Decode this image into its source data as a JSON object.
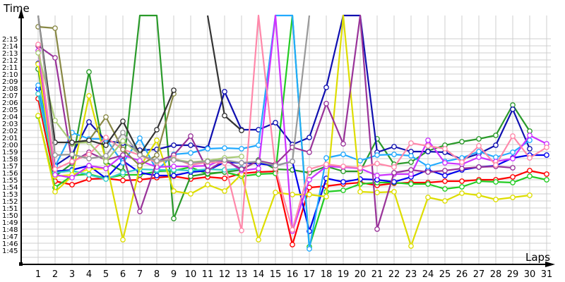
{
  "chart_data": {
    "type": "line",
    "title": "",
    "xlabel": "Laps",
    "ylabel": "Time",
    "x": [
      1,
      2,
      3,
      4,
      5,
      6,
      7,
      8,
      9,
      10,
      11,
      12,
      13,
      14,
      15,
      16,
      17,
      18,
      19,
      20,
      21,
      22,
      23,
      24,
      25,
      26,
      27,
      28,
      29,
      30,
      31
    ],
    "y_tick_labels": [
      "1:45",
      "1:46",
      "1:47",
      "1:48",
      "1:49",
      "1:50",
      "1:51",
      "1:52",
      "1:53",
      "1:54",
      "1:55",
      "1:56",
      "1:57",
      "1:58",
      "1:59",
      "2:00",
      "2:01",
      "2:02",
      "2:03",
      "2:04",
      "2:05",
      "2:06",
      "2:07",
      "2:08",
      "2:09",
      "2:10",
      "2:11",
      "2:12",
      "2:13",
      "2:14",
      "2:15"
    ],
    "ylim_seconds": [
      105,
      135
    ],
    "grid": true,
    "legend": "none",
    "units": "lap time in seconds (values above 135 are off-chart spikes)",
    "series": [
      {
        "name": "red",
        "color": "#ff0000",
        "values": [
          126.5,
          114.8,
          114.3,
          115.1,
          115.2,
          114.9,
          115.0,
          115.3,
          115.5,
          115.1,
          115.4,
          115.2,
          115.9,
          116.1,
          116.2,
          105.8,
          113.9,
          114.1,
          114.4,
          114.6,
          114.2,
          114.5,
          114.6,
          114.6,
          114.8,
          114.8,
          115.0,
          115.0,
          115.4,
          116.3,
          115.8
        ]
      },
      {
        "name": "green",
        "color": "#22cc22",
        "values": [
          124.0,
          113.9,
          115.6,
          115.8,
          115.2,
          115.7,
          115.7,
          116.2,
          116.3,
          116.8,
          115.8,
          116.1,
          115.5,
          115.8,
          115.9,
          150,
          105.5,
          113.3,
          113.5,
          114.4,
          114.6,
          114.6,
          114.4,
          114.4,
          113.7,
          114.0,
          114.8,
          114.7,
          114.6,
          115.5,
          115.0
        ]
      },
      {
        "name": "darkgreen",
        "color": "#2a9a2a",
        "values": [
          130.7,
          115.5,
          117.3,
          130.3,
          117.5,
          116.2,
          150,
          150,
          109.5,
          115.5,
          115.9,
          116.1,
          116.4,
          117.8,
          116.5,
          116.4,
          116.0,
          116.9,
          116.2,
          116.2,
          120.8,
          117.2,
          117.5,
          119.1,
          119.9,
          120.4,
          120.8,
          121.3,
          125.6,
          121.9,
          null
        ]
      },
      {
        "name": "blue",
        "color": "#0000ee",
        "values": [
          127.9,
          116.2,
          116.4,
          117.0,
          115.2,
          117.7,
          116.0,
          115.6,
          115.6,
          116.1,
          116.3,
          117.5,
          117.4,
          117.3,
          117.0,
          117.6,
          107.7,
          115.2,
          114.7,
          115.1,
          115.0,
          114.7,
          115.4,
          116.4,
          115.6,
          116.4,
          116.8,
          117.0,
          118.1,
          118.5,
          118.5
        ]
      },
      {
        "name": "navy",
        "color": "#1010b0",
        "values": [
          131.5,
          117.0,
          118.6,
          123.2,
          120.5,
          120.2,
          119.2,
          119.3,
          119.9,
          119.9,
          119.5,
          127.5,
          122.1,
          122.1,
          123.1,
          120.0,
          121.0,
          128.1,
          150,
          150,
          118.9,
          119.7,
          119.0,
          119.0,
          118.9,
          117.9,
          118.7,
          119.9,
          125.0,
          119.4,
          null
        ]
      },
      {
        "name": "cyan",
        "color": "#22aaff",
        "values": [
          128.4,
          116.9,
          121.7,
          120.8,
          120.8,
          117.4,
          120.9,
          116.3,
          118.6,
          118.8,
          119.4,
          119.5,
          119.4,
          119.9,
          150,
          150,
          105.2,
          118.1,
          118.6,
          117.7,
          118.5,
          118.6,
          118.4,
          116.9,
          117.6,
          118.1,
          119.0,
          118.2,
          118.9,
          120.6,
          null
        ]
      },
      {
        "name": "teal",
        "color": "#33cccc",
        "values": [
          127.2,
          116.0,
          116.3,
          115.7,
          115.1,
          116.0,
          116.5,
          116.4,
          116.4,
          116.3,
          116.5,
          116.4,
          116.6,
          null,
          null,
          null,
          null,
          null,
          null,
          null,
          null,
          null,
          null,
          null,
          null,
          null,
          null,
          null,
          null,
          null,
          null
        ]
      },
      {
        "name": "yellow",
        "color": "#dddd00",
        "values": [
          124.1,
          113.3,
          115.5,
          126.9,
          117.7,
          106.5,
          116.8,
          120.6,
          113.4,
          113.0,
          114.3,
          113.4,
          115.8,
          106.5,
          113.2,
          112.9,
          112.9,
          112.6,
          150,
          113.3,
          113.2,
          113.3,
          105.6,
          112.5,
          112.0,
          113.1,
          112.8,
          112.2,
          112.5,
          112.8,
          null
        ]
      },
      {
        "name": "brightyellow",
        "color": "#eeee00",
        "values": [
          131.4,
          115.5,
          115.7,
          116.5,
          116.6,
          null,
          null,
          null,
          null,
          null,
          null,
          null,
          null,
          null,
          null,
          null,
          null,
          null,
          null,
          null,
          null,
          null,
          null,
          null,
          null,
          null,
          null,
          null,
          null,
          null,
          null
        ]
      },
      {
        "name": "magenta",
        "color": "#cc33ff",
        "values": [
          133.3,
          115.7,
          115.3,
          117.0,
          116.6,
          118.5,
          117.7,
          116.8,
          116.9,
          116.9,
          117.0,
          117.9,
          116.3,
          116.6,
          150,
          107.7,
          115.0,
          116.9,
          116.8,
          116.6,
          115.6,
          115.8,
          115.8,
          120.6,
          117.4,
          117.2,
          118.2,
          117.6,
          118.0,
          121.3,
          120.1
        ]
      },
      {
        "name": "purple",
        "color": "#993399",
        "values": [
          134.0,
          132.3,
          117.5,
          118.9,
          117.8,
          118.5,
          110.5,
          117.6,
          118.5,
          121.2,
          116.3,
          117.8,
          116.5,
          117.7,
          117.2,
          119.6,
          118.9,
          125.8,
          120.1,
          150,
          108.0,
          116.0,
          116.4,
          116.1,
          116.3,
          116.6,
          116.8,
          116.9,
          116.7,
          null,
          null
        ]
      },
      {
        "name": "pink",
        "color": "#ff88aa",
        "values": [
          134.2,
          116.5,
          117.6,
          118.6,
          121.0,
          119.3,
          118.5,
          117.4,
          118.1,
          117.1,
          117.5,
          117.4,
          107.8,
          150,
          116.6,
          107.9,
          116.5,
          117.2,
          116.9,
          116.7,
          117.3,
          116.8,
          120.2,
          119.8,
          119.4,
          117.5,
          119.8,
          117.1,
          121.2,
          118.1,
          119.6
        ]
      },
      {
        "name": "olive",
        "color": "#888844",
        "values": [
          136.7,
          136.5,
          120.1,
          120.6,
          123.9,
          119.3,
          117.0,
          118.5,
          127.2,
          null,
          null,
          null,
          null,
          null,
          null,
          null,
          null,
          null,
          null,
          null,
          null,
          null,
          null,
          null,
          null,
          null,
          null,
          null,
          null,
          null,
          null
        ]
      },
      {
        "name": "lightolive",
        "color": "#aacc77",
        "values": [
          133.0,
          123.4,
          120.2,
          120.3,
          117.6,
          120.5,
          118.6,
          117.6,
          117.9,
          117.5,
          117.7,
          118.1,
          118.3,
          null,
          null,
          null,
          null,
          null,
          null,
          null,
          null,
          null,
          null,
          null,
          null,
          null,
          null,
          null,
          null,
          null,
          null
        ]
      },
      {
        "name": "black",
        "color": "#333333",
        "values": [
          150,
          120.3,
          120.3,
          120.6,
          119.9,
          123.3,
          118.6,
          122.1,
          127.7,
          null,
          150,
          124.1,
          122.0,
          null,
          null,
          null,
          null,
          null,
          null,
          null,
          null,
          null,
          null,
          null,
          null,
          null,
          null,
          null,
          null,
          null,
          null
        ]
      },
      {
        "name": "gray",
        "color": "#999999",
        "values": [
          150,
          118.5,
          118.6,
          118.0,
          118.4,
          121.7,
          118.5,
          117.7,
          117.8,
          117.4,
          117.6,
          117.8,
          117.4,
          117.6,
          117.0,
          117.6,
          150,
          null,
          null,
          null,
          null,
          null,
          null,
          null,
          null,
          null,
          null,
          null,
          null,
          null,
          null
        ]
      }
    ]
  },
  "axes": {
    "y_title": "Time",
    "x_title": "Laps"
  }
}
